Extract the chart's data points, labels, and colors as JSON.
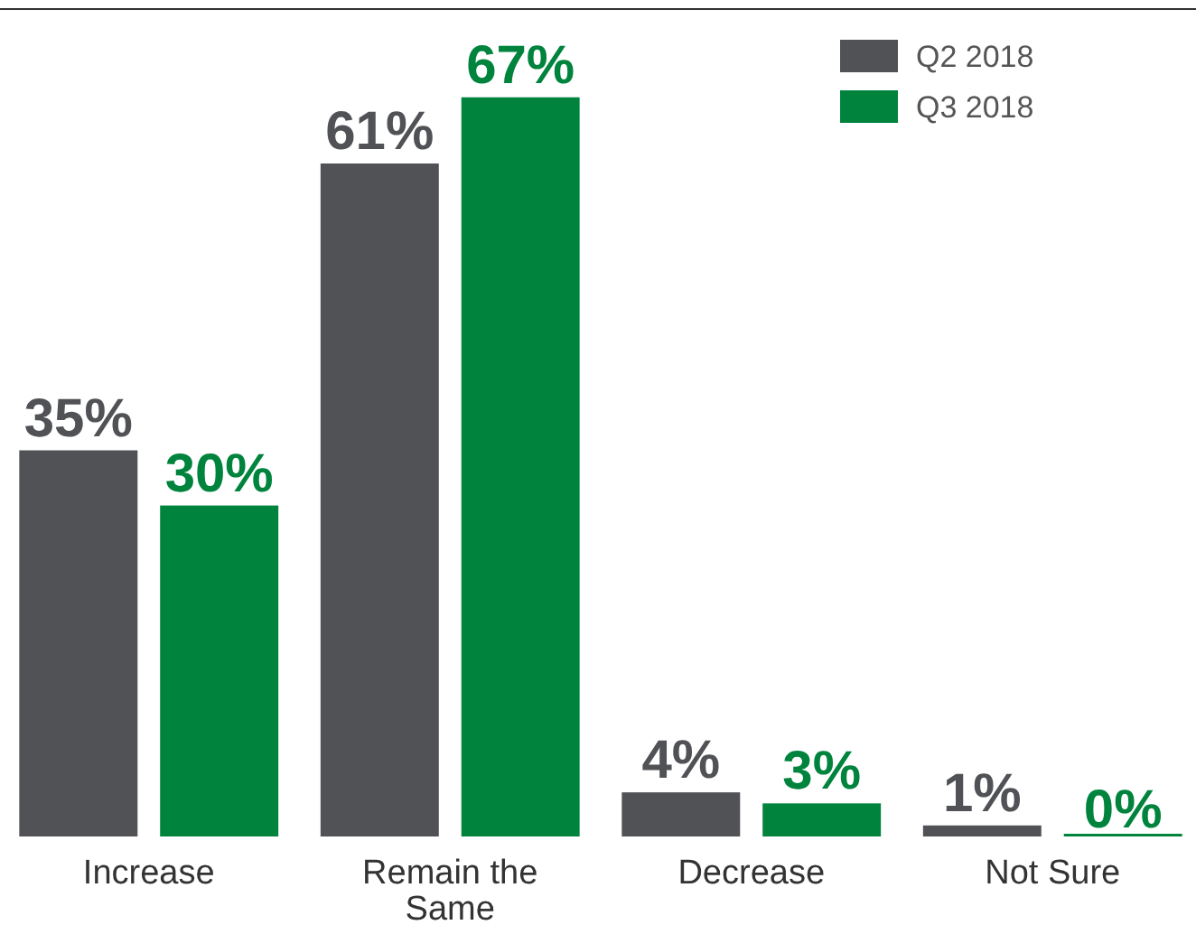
{
  "chart_data": {
    "type": "bar",
    "categories": [
      "Increase",
      "Remain the Same",
      "Decrease",
      "Not Sure"
    ],
    "series": [
      {
        "name": "Q2 2018",
        "color": "#515256",
        "values": [
          35,
          61,
          4,
          1
        ],
        "value_labels": [
          "35%",
          "61%",
          "4%",
          "1%"
        ]
      },
      {
        "name": "Q3 2018",
        "color": "#00843d",
        "values": [
          30,
          67,
          3,
          0
        ],
        "value_labels": [
          "30%",
          "67%",
          "3%",
          "0%"
        ]
      }
    ],
    "ylim": [
      0,
      75
    ],
    "legend": "top right"
  }
}
